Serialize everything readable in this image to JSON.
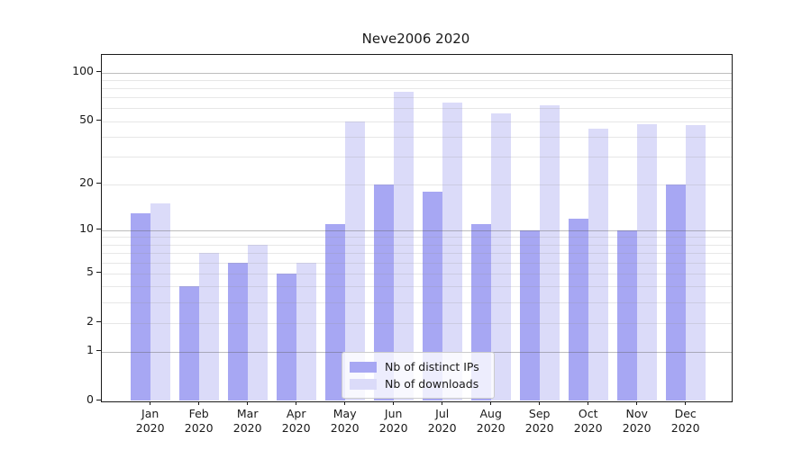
{
  "chart_data": {
    "type": "bar",
    "title": "Neve2006 2020",
    "categories": [
      "Jan",
      "Feb",
      "Mar",
      "Apr",
      "May",
      "Jun",
      "Jul",
      "Aug",
      "Sep",
      "Oct",
      "Nov",
      "Dec"
    ],
    "category_year": "2020",
    "series": [
      {
        "name": "Nb of distinct IPs",
        "color": "#a7a7f3",
        "values": [
          13,
          4,
          6,
          5,
          11,
          20,
          18,
          11,
          10,
          12,
          10,
          20
        ]
      },
      {
        "name": "Nb of downloads",
        "color": "#dbdbf9",
        "values": [
          15,
          7,
          8,
          6,
          50,
          76,
          65,
          56,
          63,
          45,
          48,
          47
        ]
      }
    ],
    "yscale": "log1p",
    "ylim": [
      0,
      130
    ],
    "yticks": [
      0,
      1,
      2,
      5,
      10,
      20,
      50,
      100
    ],
    "major_gridlines": [
      1,
      10,
      100
    ],
    "minor_gridlines": [
      2,
      3,
      4,
      5,
      6,
      7,
      8,
      9,
      20,
      30,
      40,
      50,
      60,
      70,
      80,
      90
    ],
    "grid": "on",
    "legend_position": "lower center"
  }
}
